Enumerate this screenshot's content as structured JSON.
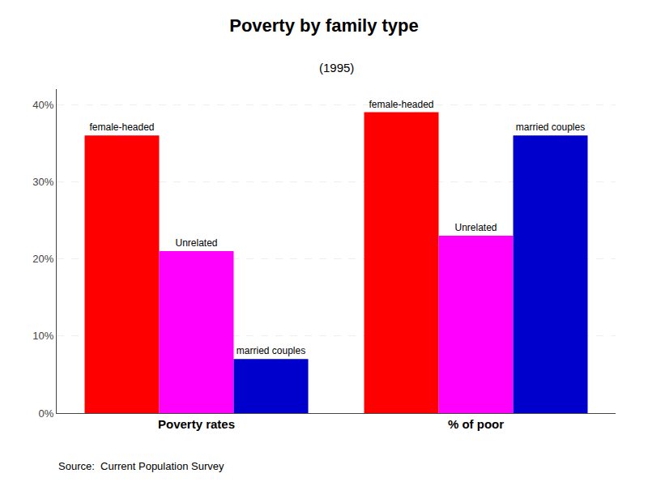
{
  "chart_data": {
    "type": "bar",
    "title": "Poverty by family type",
    "subtitle": "(1995)",
    "source": "Source:  Current Population Survey",
    "categories": [
      "Poverty rates",
      "% of poor"
    ],
    "series": [
      {
        "name": "female-headed",
        "color": "#ff0000",
        "values": [
          36,
          39
        ]
      },
      {
        "name": "Unrelated",
        "color": "#ff00ff",
        "values": [
          21,
          23
        ]
      },
      {
        "name": "married couples",
        "color": "#0000cc",
        "values": [
          7,
          36
        ]
      }
    ],
    "annotations": [
      {
        "text": "female-headed",
        "x": "Poverty rates",
        "y": 36
      },
      {
        "text": "Unrelated",
        "x": "Poverty rates",
        "y": 21
      },
      {
        "text": "married couples",
        "x": "Poverty rates",
        "y": 7
      },
      {
        "text": "female-headed",
        "x": "% of poor",
        "y": 39
      },
      {
        "text": "Unrelated",
        "x": "% of poor",
        "y": 23
      },
      {
        "text": "married couples",
        "x": "% of poor",
        "y": 36
      }
    ],
    "ylim": [
      0,
      42
    ],
    "yticks": [
      {
        "value": 0,
        "label": "0%"
      },
      {
        "value": 10,
        "label": "10%"
      },
      {
        "value": 20,
        "label": "20%"
      },
      {
        "value": 30,
        "label": "30%"
      },
      {
        "value": 40,
        "label": "40%"
      }
    ],
    "grid": true
  }
}
